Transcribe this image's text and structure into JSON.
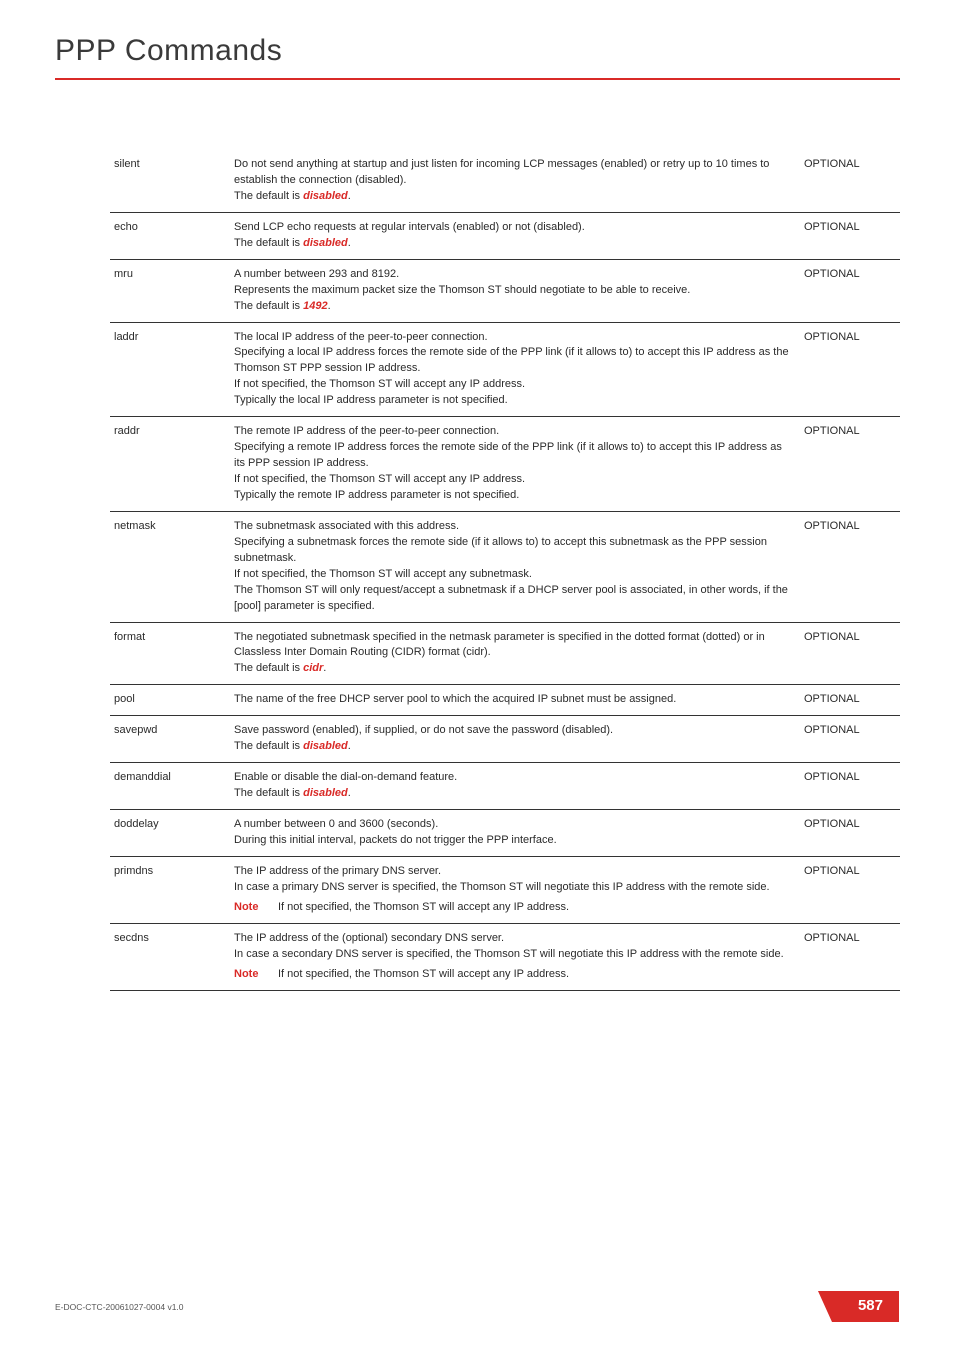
{
  "header": {
    "title": "PPP Commands"
  },
  "colors": {
    "accent": "#d92a27",
    "text": "#2a2a2a",
    "rule": "#333333",
    "bg": "#ffffff"
  },
  "table": {
    "rows": [
      {
        "param": "silent",
        "desc_parts": [
          {
            "t": "Do not send anything at startup and just listen for incoming LCP messages (enabled) or retry up to 10 times to establish the connection (disabled)."
          },
          {
            "br": true
          },
          {
            "t": "The default is "
          },
          {
            "t": "disabled",
            "cls": "disabled-word"
          },
          {
            "t": "."
          }
        ],
        "req": "OPTIONAL"
      },
      {
        "param": "echo",
        "desc_parts": [
          {
            "t": "Send LCP echo requests at regular intervals (enabled) or not (disabled)."
          },
          {
            "br": true
          },
          {
            "t": "The default is "
          },
          {
            "t": "disabled",
            "cls": "disabled-word"
          },
          {
            "t": "."
          }
        ],
        "req": "OPTIONAL"
      },
      {
        "param": "mru",
        "desc_parts": [
          {
            "t": "A number between 293 and 8192."
          },
          {
            "br": true
          },
          {
            "t": "Represents the maximum packet size the Thomson ST should negotiate to be able to receive."
          },
          {
            "br": true
          },
          {
            "t": "The default is "
          },
          {
            "t": "1492",
            "cls": "num-word"
          },
          {
            "t": "."
          }
        ],
        "req": "OPTIONAL"
      },
      {
        "param": "laddr",
        "desc_parts": [
          {
            "t": "The local IP address of the peer-to-peer connection."
          },
          {
            "br": true
          },
          {
            "t": "Specifying a local IP address forces the remote side of the PPP link (if it allows to) to accept this IP address as the Thomson ST PPP session IP address."
          },
          {
            "br": true
          },
          {
            "t": "If not specified, the Thomson ST will accept any IP address."
          },
          {
            "br": true
          },
          {
            "t": "Typically the local IP address parameter is not specified."
          }
        ],
        "req": "OPTIONAL"
      },
      {
        "param": "raddr",
        "desc_parts": [
          {
            "t": "The remote IP address of the peer-to-peer connection."
          },
          {
            "br": true
          },
          {
            "t": "Specifying a remote IP address forces the remote side of the PPP link (if it allows to) to accept this IP address as its PPP session IP address."
          },
          {
            "br": true
          },
          {
            "t": "If not specified, the Thomson ST will accept any IP address."
          },
          {
            "br": true
          },
          {
            "t": "Typically the remote IP address parameter is not specified."
          }
        ],
        "req": "OPTIONAL"
      },
      {
        "param": "netmask",
        "desc_parts": [
          {
            "t": "The subnetmask associated with this address."
          },
          {
            "br": true
          },
          {
            "t": "Specifying a subnetmask forces the remote side (if it allows to) to accept this subnetmask as the PPP session subnetmask."
          },
          {
            "br": true
          },
          {
            "t": "If not specified, the Thomson ST will accept any subnetmask."
          },
          {
            "br": true
          },
          {
            "t": "The Thomson ST will only request/accept a subnetmask if a DHCP server pool is associated, in other words, if the [pool] parameter is specified."
          }
        ],
        "req": "OPTIONAL"
      },
      {
        "param": "format",
        "desc_parts": [
          {
            "t": "The negotiated subnetmask specified in the netmask parameter is specified in the dotted format (dotted) or in Classless Inter Domain Routing (CIDR) format (cidr)."
          },
          {
            "br": true
          },
          {
            "t": "The default is "
          },
          {
            "t": "cidr",
            "cls": "cidr-word"
          },
          {
            "t": "."
          }
        ],
        "req": "OPTIONAL"
      },
      {
        "param": "pool",
        "desc_parts": [
          {
            "t": "The name of the free DHCP server pool to which the acquired IP subnet must be assigned."
          }
        ],
        "req": "OPTIONAL"
      },
      {
        "param": "savepwd",
        "desc_parts": [
          {
            "t": "Save password (enabled), if supplied, or do not save the password (disabled)."
          },
          {
            "br": true
          },
          {
            "t": "The default is "
          },
          {
            "t": "disabled",
            "cls": "disabled-word"
          },
          {
            "t": "."
          }
        ],
        "req": "OPTIONAL"
      },
      {
        "param": "demanddial",
        "desc_parts": [
          {
            "t": "Enable or disable the dial-on-demand feature."
          },
          {
            "br": true
          },
          {
            "t": "The default is "
          },
          {
            "t": "disabled",
            "cls": "disabled-word"
          },
          {
            "t": "."
          }
        ],
        "req": "OPTIONAL"
      },
      {
        "param": "doddelay",
        "desc_parts": [
          {
            "t": "A number between 0 and 3600 (seconds)."
          },
          {
            "br": true
          },
          {
            "t": "During this initial interval,  packets do not trigger the PPP interface."
          }
        ],
        "req": "OPTIONAL"
      },
      {
        "param": "primdns",
        "desc_parts": [
          {
            "t": "The IP address of the primary DNS server."
          },
          {
            "br": true
          },
          {
            "t": "In case a primary DNS server is specified, the Thomson ST will negotiate this IP address with the remote side."
          }
        ],
        "note": "If not specified, the Thomson ST will accept any IP address.",
        "req": "OPTIONAL"
      },
      {
        "param": "secdns",
        "desc_parts": [
          {
            "t": "The IP address of the (optional) secondary DNS server."
          },
          {
            "br": true
          },
          {
            "t": "In case a secondary DNS server is specified, the Thomson ST will negotiate this IP address with the remote side."
          }
        ],
        "note": "If not specified, the Thomson ST will accept any IP address.",
        "req": "OPTIONAL"
      }
    ]
  },
  "labels": {
    "note": "Note"
  },
  "footer": {
    "doc": "E-DOC-CTC-20061027-0004 v1.0",
    "page": "587"
  }
}
